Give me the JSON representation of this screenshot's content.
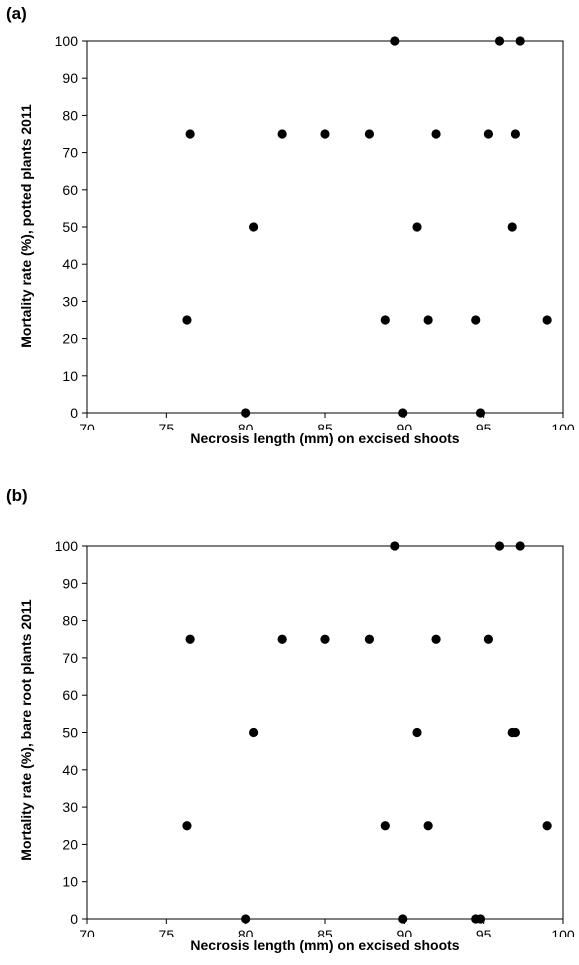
{
  "chart_data": [
    {
      "panel_label": "(a)",
      "type": "scatter",
      "xlabel": "Necrosis length (mm) on excised shoots",
      "ylabel": "Mortality rate (%), potted plants 2011",
      "xlim": [
        70,
        100
      ],
      "ylim": [
        0,
        100
      ],
      "xticks": [
        70,
        75,
        80,
        85,
        90,
        95,
        100
      ],
      "yticks": [
        0,
        10,
        20,
        30,
        40,
        50,
        60,
        70,
        80,
        90,
        100
      ],
      "grid": false,
      "points": [
        {
          "x": 76.3,
          "y": 25
        },
        {
          "x": 76.5,
          "y": 75
        },
        {
          "x": 80.0,
          "y": 0
        },
        {
          "x": 80.5,
          "y": 50
        },
        {
          "x": 82.3,
          "y": 75
        },
        {
          "x": 85.0,
          "y": 75
        },
        {
          "x": 87.8,
          "y": 75
        },
        {
          "x": 88.8,
          "y": 25
        },
        {
          "x": 89.4,
          "y": 100
        },
        {
          "x": 89.9,
          "y": 0
        },
        {
          "x": 90.8,
          "y": 50
        },
        {
          "x": 91.5,
          "y": 25
        },
        {
          "x": 92.0,
          "y": 75
        },
        {
          "x": 94.5,
          "y": 25
        },
        {
          "x": 94.8,
          "y": 0
        },
        {
          "x": 95.3,
          "y": 75
        },
        {
          "x": 96.0,
          "y": 100
        },
        {
          "x": 96.8,
          "y": 50
        },
        {
          "x": 97.0,
          "y": 75
        },
        {
          "x": 97.3,
          "y": 100
        },
        {
          "x": 99.0,
          "y": 25
        }
      ]
    },
    {
      "panel_label": "(b)",
      "type": "scatter",
      "xlabel": "Necrosis length (mm) on excised shoots",
      "ylabel": "Mortality rate (%), bare root plants 2011",
      "xlim": [
        70,
        100
      ],
      "ylim": [
        0,
        100
      ],
      "xticks": [
        70,
        75,
        80,
        85,
        90,
        95,
        100
      ],
      "yticks": [
        0,
        10,
        20,
        30,
        40,
        50,
        60,
        70,
        80,
        90,
        100
      ],
      "grid": false,
      "points": [
        {
          "x": 76.3,
          "y": 25
        },
        {
          "x": 76.5,
          "y": 75
        },
        {
          "x": 80.0,
          "y": 0
        },
        {
          "x": 80.5,
          "y": 50
        },
        {
          "x": 82.3,
          "y": 75
        },
        {
          "x": 85.0,
          "y": 75
        },
        {
          "x": 87.8,
          "y": 75
        },
        {
          "x": 88.8,
          "y": 25
        },
        {
          "x": 89.4,
          "y": 100
        },
        {
          "x": 89.9,
          "y": 0
        },
        {
          "x": 90.8,
          "y": 50
        },
        {
          "x": 91.5,
          "y": 25
        },
        {
          "x": 92.0,
          "y": 75
        },
        {
          "x": 94.5,
          "y": 0
        },
        {
          "x": 94.8,
          "y": 0
        },
        {
          "x": 95.3,
          "y": 75
        },
        {
          "x": 96.0,
          "y": 100
        },
        {
          "x": 96.8,
          "y": 50
        },
        {
          "x": 97.0,
          "y": 50
        },
        {
          "x": 97.3,
          "y": 100
        },
        {
          "x": 99.0,
          "y": 25
        }
      ]
    }
  ]
}
